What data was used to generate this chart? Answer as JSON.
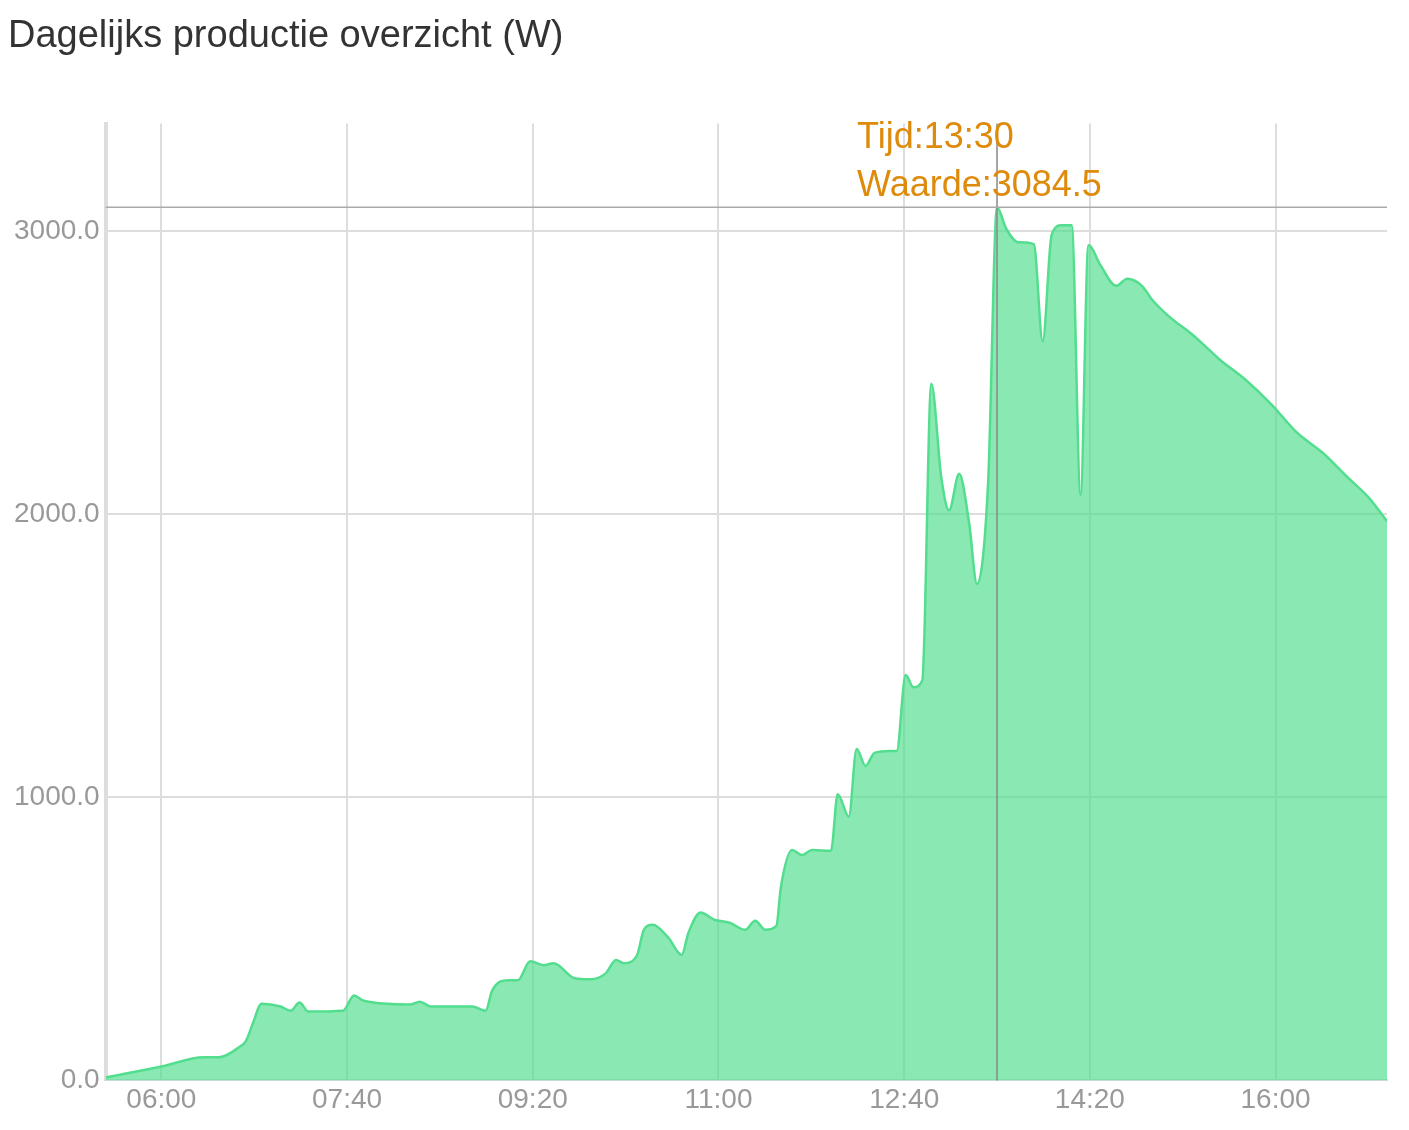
{
  "chart_data": {
    "type": "area",
    "title": "Dagelijks productie overzicht (W)",
    "x": [
      5.5,
      6.01,
      6.38,
      6.52,
      6.7,
      6.76,
      6.82,
      6.9,
      7.07,
      7.16,
      7.24,
      7.32,
      7.63,
      7.73,
      7.81,
      8.23,
      8.32,
      8.42,
      8.79,
      8.91,
      8.97,
      9.11,
      9.2,
      9.31,
      9.43,
      9.52,
      9.71,
      9.85,
      9.99,
      10.08,
      10.15,
      10.27,
      10.33,
      10.41,
      10.55,
      10.67,
      10.73,
      10.84,
      10.96,
      11.1,
      11.24,
      11.33,
      11.42,
      11.52,
      11.56,
      11.66,
      11.75,
      11.84,
      12.01,
      12.07,
      12.17,
      12.24,
      12.32,
      12.4,
      12.54,
      12.6,
      12.68,
      12.75,
      12.83,
      12.91,
      13.0,
      13.07,
      13.16,
      13.25,
      13.32,
      13.42,
      13.5,
      13.58,
      13.69,
      13.83,
      13.91,
      13.99,
      14.08,
      14.17,
      14.25,
      14.32,
      14.43,
      14.57,
      14.67,
      14.8,
      14.9,
      15.04,
      15.27,
      15.5,
      15.73,
      15.96,
      16.19,
      16.42,
      16.65,
      16.84,
      17.0
    ],
    "series": [
      {
        "color": "#52de8e",
        "values": [
          10,
          50,
          82,
          82,
          118,
          140,
          200,
          271,
          261,
          246,
          275,
          243,
          246,
          300,
          282,
          268,
          278,
          261,
          261,
          246,
          318,
          354,
          354,
          421,
          407,
          414,
          361,
          357,
          379,
          425,
          414,
          443,
          532,
          550,
          504,
          443,
          521,
          593,
          568,
          557,
          532,
          564,
          532,
          546,
          682,
          814,
          796,
          814,
          811,
          1011,
          932,
          1171,
          1111,
          1157,
          1164,
          1164,
          1432,
          1389,
          1414,
          2461,
          2129,
          2014,
          2143,
          1968,
          1754,
          2111,
          3084.5,
          3011,
          2961,
          2954,
          2611,
          2986,
          3021,
          3021,
          2068,
          2950,
          2879,
          2807,
          2832,
          2807,
          2754,
          2700,
          2629,
          2546,
          2475,
          2389,
          2289,
          2218,
          2129,
          2057,
          1975
        ]
      }
    ],
    "xlim": [
      5.5,
      17.0
    ],
    "xticks": [
      {
        "value": 6,
        "label": "06:00"
      },
      {
        "value": 7.6667,
        "label": "07:40"
      },
      {
        "value": 9.3333,
        "label": "09:20"
      },
      {
        "value": 11,
        "label": "11:00"
      },
      {
        "value": 12.6667,
        "label": "12:40"
      },
      {
        "value": 14.3333,
        "label": "14:20"
      },
      {
        "value": 16,
        "label": "16:00"
      }
    ],
    "ylim": [
      0,
      3380
    ],
    "yticks": [
      {
        "value": 0,
        "label": "0.0"
      },
      {
        "value": 1000,
        "label": "1000.0"
      },
      {
        "value": 2000,
        "label": "2000.0"
      },
      {
        "value": 3000,
        "label": "3000.0"
      }
    ],
    "ref_lines": [
      {
        "axis": "x",
        "value": 13.5,
        "label": "Tijd:13:30",
        "color": "#888888"
      },
      {
        "axis": "y",
        "value": 3084.5,
        "label": "Waarde:3084.5",
        "color": "#aaaaaa"
      }
    ],
    "grid": true,
    "legend": false,
    "marker": "none",
    "line_style": "solid"
  }
}
